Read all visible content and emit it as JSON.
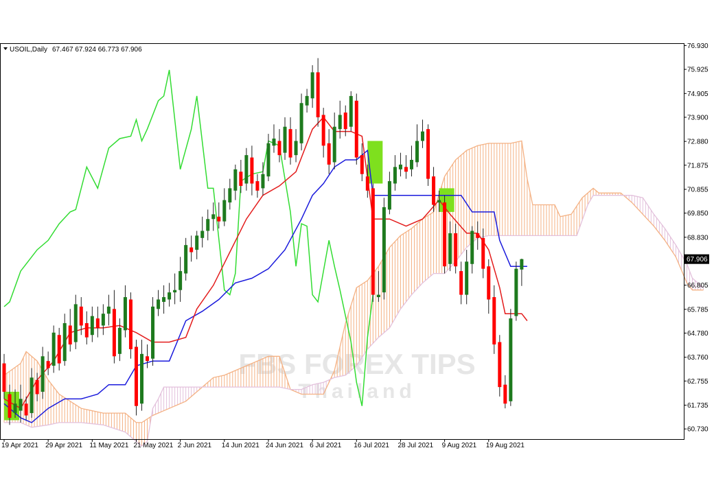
{
  "header": {
    "menu_icon": "triangle-down-icon",
    "symbol": "USOIL,Daily",
    "ohlc": "67.467 67.924 66.773 67.906"
  },
  "watermark": {
    "line1": "FBS FOREX TIPS",
    "line2": "Thailand"
  },
  "colors": {
    "bull": "#1e7a1e",
    "bear": "#ff0000",
    "tenkan": "#e31b1b",
    "kijun": "#1a1adc",
    "chikou": "#32dc32",
    "kumo_bull": "#f4b183",
    "kumo_bear": "#e3c1dc",
    "highlight": "#7ee01e"
  },
  "chart_data": {
    "type": "candlestick-ichimoku",
    "symbol": "USOIL",
    "timeframe": "Daily",
    "current_price": "67.906",
    "y_ticks": [
      "76.930",
      "75.925",
      "74.905",
      "73.900",
      "72.880",
      "71.875",
      "70.855",
      "69.850",
      "68.830",
      "67.906",
      "66.805",
      "65.785",
      "64.780",
      "63.760",
      "62.755",
      "61.735",
      "60.730"
    ],
    "x_ticks": [
      "19 Apr 2021",
      "29 Apr 2021",
      "11 May 2021",
      "21 May 2021",
      "2 Jun 2021",
      "14 Jun 2021",
      "24 Jun 2021",
      "6 Jul 2021",
      "16 Jul 2021",
      "28 Jul 2021",
      "9 Aug 2021",
      "19 Aug 2021"
    ],
    "ylim": [
      60.3,
      77.0
    ],
    "candles": [
      [
        63.5,
        62.3,
        63.9,
        62.0
      ],
      [
        62.2,
        61.2,
        62.6,
        60.9
      ],
      [
        61.4,
        61.8,
        62.4,
        61.2
      ],
      [
        61.5,
        62.0,
        62.6,
        61.0
      ],
      [
        61.8,
        61.3,
        62.1,
        61.1
      ],
      [
        61.4,
        62.9,
        63.3,
        61.2
      ],
      [
        62.8,
        62.2,
        63.1,
        61.9
      ],
      [
        62.3,
        63.8,
        64.2,
        62.0
      ],
      [
        63.6,
        63.3,
        64.0,
        63.0
      ],
      [
        63.4,
        64.8,
        65.1,
        63.1
      ],
      [
        64.7,
        63.5,
        65.0,
        63.2
      ],
      [
        63.6,
        65.2,
        65.6,
        63.4
      ],
      [
        65.1,
        64.3,
        65.8,
        64.0
      ],
      [
        64.4,
        66.0,
        66.4,
        64.1
      ],
      [
        65.9,
        65.1,
        66.3,
        64.7
      ],
      [
        65.2,
        64.6,
        65.7,
        64.3
      ],
      [
        64.7,
        65.5,
        65.9,
        64.4
      ],
      [
        65.4,
        65.0,
        65.9,
        64.6
      ],
      [
        65.1,
        65.6,
        66.0,
        64.7
      ],
      [
        65.6,
        65.9,
        66.4,
        65.1
      ],
      [
        65.8,
        63.8,
        66.6,
        63.5
      ],
      [
        63.9,
        65.0,
        65.4,
        63.6
      ],
      [
        64.9,
        66.3,
        66.8,
        64.6
      ],
      [
        66.2,
        64.1,
        66.5,
        63.7
      ],
      [
        64.2,
        61.7,
        64.5,
        61.3
      ],
      [
        61.8,
        63.9,
        64.5,
        61.5
      ],
      [
        63.8,
        63.6,
        64.3,
        63.3
      ],
      [
        63.7,
        65.9,
        66.3,
        63.4
      ],
      [
        65.8,
        66.2,
        66.6,
        65.5
      ],
      [
        66.1,
        66.3,
        66.8,
        65.6
      ],
      [
        66.2,
        66.5,
        66.9,
        65.9
      ],
      [
        66.5,
        66.6,
        67.3,
        66.0
      ],
      [
        66.6,
        67.4,
        68.0,
        66.1
      ],
      [
        67.3,
        68.5,
        68.8,
        67.0
      ],
      [
        68.4,
        68.2,
        68.9,
        67.8
      ],
      [
        68.3,
        68.9,
        69.1,
        67.9
      ],
      [
        68.8,
        69.1,
        69.7,
        68.4
      ],
      [
        69.1,
        69.6,
        70.0,
        68.7
      ],
      [
        69.6,
        69.8,
        70.3,
        69.1
      ],
      [
        69.7,
        69.5,
        70.3,
        69.2
      ],
      [
        69.5,
        70.4,
        70.9,
        69.3
      ],
      [
        70.3,
        70.9,
        71.3,
        70.0
      ],
      [
        70.8,
        71.7,
        71.9,
        70.4
      ],
      [
        71.6,
        71.0,
        72.1,
        70.7
      ],
      [
        71.1,
        72.3,
        72.6,
        70.8
      ],
      [
        72.2,
        71.1,
        72.7,
        70.6
      ],
      [
        71.2,
        70.8,
        71.5,
        70.5
      ],
      [
        70.9,
        71.5,
        72.0,
        70.6
      ],
      [
        71.4,
        72.8,
        73.2,
        71.2
      ],
      [
        72.7,
        73.0,
        73.6,
        72.4
      ],
      [
        72.9,
        72.3,
        73.4,
        72.0
      ],
      [
        72.4,
        73.5,
        73.9,
        72.1
      ],
      [
        73.4,
        72.2,
        73.9,
        71.9
      ],
      [
        72.3,
        72.9,
        73.4,
        72.0
      ],
      [
        72.8,
        74.5,
        74.9,
        72.5
      ],
      [
        74.4,
        74.8,
        75.1,
        74.1
      ],
      [
        74.7,
        75.8,
        76.1,
        74.3
      ],
      [
        75.8,
        73.9,
        76.4,
        73.5
      ],
      [
        74.0,
        72.7,
        74.3,
        72.2
      ],
      [
        72.8,
        71.9,
        73.4,
        71.5
      ],
      [
        72.0,
        73.5,
        74.1,
        71.7
      ],
      [
        73.4,
        74.0,
        74.6,
        73.0
      ],
      [
        74.1,
        73.4,
        74.4,
        73.1
      ],
      [
        73.5,
        74.8,
        75.0,
        73.3
      ],
      [
        74.6,
        72.2,
        74.9,
        71.9
      ],
      [
        72.3,
        71.5,
        72.8,
        71.2
      ],
      [
        71.4,
        70.8,
        71.9,
        70.5
      ],
      [
        70.9,
        66.4,
        71.1,
        66.1
      ],
      [
        66.3,
        66.4,
        67.4,
        66.1
      ],
      [
        66.5,
        70.1,
        70.5,
        66.2
      ],
      [
        70.0,
        71.2,
        71.6,
        69.8
      ],
      [
        71.1,
        71.8,
        72.3,
        70.8
      ],
      [
        71.7,
        71.9,
        72.4,
        71.4
      ],
      [
        71.8,
        71.6,
        72.3,
        71.3
      ],
      [
        71.7,
        72.1,
        72.7,
        71.4
      ],
      [
        72.0,
        72.9,
        73.6,
        71.8
      ],
      [
        72.9,
        73.3,
        73.8,
        72.6
      ],
      [
        73.4,
        71.3,
        73.6,
        71.0
      ],
      [
        71.4,
        70.2,
        71.8,
        69.9
      ],
      [
        70.3,
        70.4,
        70.8,
        69.9
      ],
      [
        70.3,
        67.6,
        70.6,
        67.3
      ],
      [
        67.7,
        69.0,
        69.5,
        67.4
      ],
      [
        69.0,
        67.6,
        69.4,
        67.3
      ],
      [
        67.4,
        66.4,
        67.8,
        66.0
      ],
      [
        66.4,
        67.8,
        68.3,
        66.0
      ],
      [
        67.7,
        69.1,
        69.3,
        67.3
      ],
      [
        69.0,
        68.8,
        69.5,
        68.3
      ],
      [
        68.8,
        67.5,
        69.2,
        67.1
      ],
      [
        67.6,
        66.2,
        67.9,
        65.6
      ],
      [
        66.3,
        64.3,
        66.8,
        63.9
      ],
      [
        64.4,
        62.5,
        64.7,
        62.1
      ],
      [
        62.6,
        61.8,
        63.0,
        61.6
      ],
      [
        61.9,
        65.4,
        65.8,
        61.7
      ],
      [
        65.5,
        67.5,
        67.8,
        65.3
      ],
      [
        67.467,
        67.906,
        67.924,
        66.773
      ]
    ],
    "tenkan": [
      [
        0,
        62.0
      ],
      [
        3,
        61.6
      ],
      [
        6,
        62.8
      ],
      [
        9,
        63.6
      ],
      [
        12,
        64.8
      ],
      [
        15,
        65.0
      ],
      [
        18,
        65.0
      ],
      [
        21,
        65.1
      ],
      [
        24,
        64.8
      ],
      [
        27,
        64.4
      ],
      [
        30,
        64.4
      ],
      [
        33,
        64.6
      ],
      [
        35,
        65.8
      ],
      [
        38,
        66.8
      ],
      [
        41,
        68.2
      ],
      [
        44,
        69.6
      ],
      [
        47,
        70.6
      ],
      [
        50,
        71.0
      ],
      [
        53,
        71.6
      ],
      [
        56,
        73.4
      ],
      [
        58,
        73.9
      ],
      [
        60,
        73.3
      ],
      [
        63,
        73.3
      ],
      [
        65,
        73.1
      ],
      [
        67,
        69.6
      ],
      [
        70,
        69.6
      ],
      [
        73,
        69.3
      ],
      [
        76,
        69.6
      ],
      [
        79,
        70.4
      ],
      [
        81,
        69.8
      ],
      [
        84,
        69.0
      ],
      [
        86,
        69.0
      ],
      [
        88,
        68.3
      ],
      [
        90,
        66.7
      ],
      [
        91,
        65.6
      ],
      [
        94,
        65.6
      ],
      [
        95,
        65.3
      ]
    ],
    "kijun": [
      [
        0,
        61.8
      ],
      [
        3,
        61.2
      ],
      [
        5,
        61.0
      ],
      [
        8,
        61.6
      ],
      [
        11,
        62.0
      ],
      [
        14,
        62.0
      ],
      [
        17,
        62.2
      ],
      [
        19,
        62.6
      ],
      [
        22,
        62.6
      ],
      [
        24,
        63.4
      ],
      [
        27,
        63.6
      ],
      [
        30,
        63.6
      ],
      [
        33,
        65.3
      ],
      [
        36,
        65.7
      ],
      [
        39,
        66.2
      ],
      [
        42,
        66.9
      ],
      [
        45,
        67.1
      ],
      [
        48,
        67.5
      ],
      [
        51,
        68.3
      ],
      [
        54,
        69.6
      ],
      [
        56,
        70.6
      ],
      [
        58,
        71.1
      ],
      [
        60,
        71.8
      ],
      [
        62,
        72.1
      ],
      [
        64,
        72.1
      ],
      [
        66,
        72.5
      ],
      [
        67,
        70.6
      ],
      [
        70,
        70.6
      ],
      [
        73,
        70.6
      ],
      [
        76,
        70.6
      ],
      [
        80,
        70.6
      ],
      [
        83,
        70.6
      ],
      [
        85,
        69.9
      ],
      [
        89,
        69.9
      ],
      [
        90,
        68.7
      ],
      [
        92,
        67.6
      ],
      [
        95,
        67.6
      ]
    ],
    "chikou": [
      [
        0,
        65.9
      ],
      [
        1,
        66.1
      ],
      [
        3,
        67.4
      ],
      [
        6,
        68.3
      ],
      [
        8,
        68.7
      ],
      [
        10,
        69.4
      ],
      [
        12,
        69.9
      ],
      [
        13,
        70.0
      ],
      [
        15,
        71.8
      ],
      [
        17,
        70.9
      ],
      [
        19,
        72.6
      ],
      [
        21,
        73.0
      ],
      [
        23,
        73.1
      ],
      [
        24,
        73.8
      ],
      [
        25,
        72.9
      ],
      [
        26,
        73.4
      ],
      [
        28,
        74.6
      ],
      [
        29,
        74.8
      ],
      [
        30,
        75.9
      ],
      [
        32,
        71.7
      ],
      [
        34,
        73.4
      ],
      [
        35,
        74.8
      ],
      [
        37,
        70.9
      ],
      [
        38,
        70.9
      ],
      [
        40,
        66.6
      ],
      [
        41,
        66.4
      ],
      [
        42,
        67.3
      ],
      [
        43,
        71.2
      ],
      [
        45,
        71.5
      ],
      [
        47,
        71.6
      ],
      [
        48,
        72.9
      ],
      [
        50,
        72.7
      ],
      [
        52,
        69.9
      ],
      [
        53,
        67.6
      ],
      [
        54,
        69.4
      ],
      [
        55,
        69.3
      ],
      [
        56,
        66.4
      ],
      [
        57,
        66.1
      ],
      [
        59,
        68.7
      ],
      [
        60,
        67.6
      ],
      [
        61,
        66.6
      ],
      [
        63,
        64.4
      ],
      [
        64,
        62.7
      ],
      [
        65,
        61.7
      ],
      [
        66,
        64.6
      ],
      [
        67,
        66.4
      ]
    ],
    "kumo_a": [
      [
        0,
        63.0
      ],
      [
        3,
        63.5
      ],
      [
        4,
        64.0
      ],
      [
        6,
        63.6
      ],
      [
        8,
        62.8
      ],
      [
        10,
        62.2
      ],
      [
        12,
        61.9
      ],
      [
        14,
        61.6
      ],
      [
        18,
        61.4
      ],
      [
        22,
        61.4
      ],
      [
        24,
        61.0
      ],
      [
        25,
        61.0
      ],
      [
        27,
        61.3
      ],
      [
        30,
        61.6
      ],
      [
        33,
        61.9
      ],
      [
        36,
        62.5
      ],
      [
        38,
        62.9
      ],
      [
        40,
        63.0
      ],
      [
        42,
        63.2
      ],
      [
        44,
        63.4
      ],
      [
        48,
        63.8
      ],
      [
        50,
        63.8
      ],
      [
        52,
        62.4
      ],
      [
        54,
        62.2
      ],
      [
        58,
        62.2
      ],
      [
        60,
        63.2
      ],
      [
        62,
        65.2
      ],
      [
        64,
        66.7
      ],
      [
        66,
        67.0
      ],
      [
        68,
        67.6
      ],
      [
        70,
        68.4
      ],
      [
        72,
        68.9
      ],
      [
        74,
        69.2
      ],
      [
        76,
        69.6
      ],
      [
        78,
        69.9
      ],
      [
        80,
        71.4
      ],
      [
        82,
        72.1
      ],
      [
        84,
        72.5
      ],
      [
        86,
        72.7
      ],
      [
        88,
        72.8
      ],
      [
        92,
        72.8
      ],
      [
        94,
        72.9
      ],
      [
        95,
        71.3
      ],
      [
        96,
        70.2
      ],
      [
        98,
        70.2
      ],
      [
        100,
        70.2
      ],
      [
        101,
        69.7
      ],
      [
        103,
        69.8
      ],
      [
        105,
        70.5
      ],
      [
        107,
        70.9
      ],
      [
        108,
        70.7
      ],
      [
        110,
        70.7
      ],
      [
        112,
        70.7
      ],
      [
        114,
        70.3
      ],
      [
        116,
        69.8
      ],
      [
        118,
        69.3
      ],
      [
        120,
        68.7
      ],
      [
        122,
        68.0
      ],
      [
        124,
        66.9
      ],
      [
        125,
        66.6
      ],
      [
        127,
        66.6
      ]
    ],
    "kumo_b": [
      [
        0,
        61.0
      ],
      [
        3,
        61.0
      ],
      [
        5,
        60.8
      ],
      [
        8,
        60.9
      ],
      [
        10,
        61.0
      ],
      [
        14,
        61.0
      ],
      [
        18,
        60.9
      ],
      [
        22,
        60.6
      ],
      [
        25,
        60.0
      ],
      [
        26,
        60.2
      ],
      [
        27,
        61.6
      ],
      [
        28,
        62.0
      ],
      [
        29,
        62.5
      ],
      [
        32,
        62.5
      ],
      [
        36,
        62.5
      ],
      [
        40,
        62.5
      ],
      [
        44,
        62.5
      ],
      [
        48,
        62.5
      ],
      [
        50,
        62.5
      ],
      [
        52,
        62.4
      ],
      [
        54,
        62.4
      ],
      [
        56,
        62.6
      ],
      [
        58,
        62.7
      ],
      [
        60,
        62.9
      ],
      [
        62,
        63.0
      ],
      [
        64,
        63.4
      ],
      [
        66,
        64.1
      ],
      [
        68,
        64.6
      ],
      [
        70,
        65.0
      ],
      [
        72,
        65.8
      ],
      [
        74,
        66.4
      ],
      [
        76,
        66.9
      ],
      [
        78,
        67.3
      ],
      [
        80,
        67.3
      ],
      [
        82,
        67.8
      ],
      [
        84,
        68.4
      ],
      [
        86,
        68.8
      ],
      [
        88,
        68.9
      ],
      [
        90,
        68.9
      ],
      [
        92,
        68.9
      ],
      [
        94,
        68.9
      ],
      [
        96,
        68.9
      ],
      [
        98,
        68.9
      ],
      [
        100,
        68.9
      ],
      [
        104,
        68.9
      ],
      [
        106,
        70.2
      ],
      [
        107,
        70.6
      ],
      [
        110,
        70.6
      ],
      [
        112,
        70.6
      ],
      [
        114,
        70.6
      ],
      [
        116,
        70.5
      ],
      [
        118,
        69.8
      ],
      [
        120,
        69.2
      ],
      [
        122,
        68.5
      ],
      [
        124,
        67.7
      ],
      [
        125,
        67.1
      ],
      [
        127,
        66.7
      ]
    ],
    "highlights": [
      [
        1,
        62.3,
        61.1
      ],
      [
        67,
        72.9,
        71.1
      ],
      [
        80,
        70.9,
        69.9
      ]
    ]
  }
}
